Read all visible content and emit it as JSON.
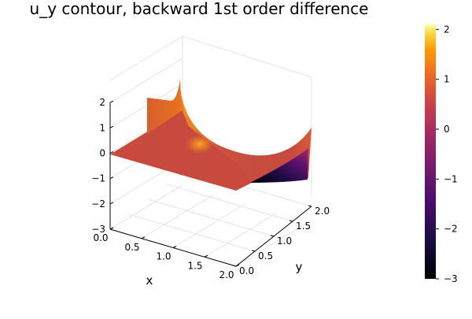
{
  "chart_data": {
    "type": "surface",
    "title": "u_y contour, backward 1st order difference",
    "xlabel": "x",
    "ylabel": "y",
    "xlim": [
      0,
      2
    ],
    "ylim": [
      0,
      2
    ],
    "zlim": [
      -3,
      2.1
    ],
    "x_ticks": [
      "0.0",
      "0.5",
      "1.0",
      "1.5",
      "2.0"
    ],
    "y_ticks": [
      "0.0",
      "0.5",
      "1.0",
      "1.5",
      "2.0"
    ],
    "z_ticks": [
      "−3",
      "−2",
      "−1",
      "0",
      "1",
      "2"
    ],
    "colorbar": {
      "colormap": "inferno",
      "range": [
        -3,
        2.1
      ],
      "ticks": [
        "−3",
        "−2",
        "−1",
        "0",
        "1",
        "2"
      ]
    },
    "grid": true,
    "legend": "none",
    "surface": [
      {
        "x": 0.0,
        "y": 0.0,
        "z": 0.0
      },
      {
        "x": 2.0,
        "y": 0.0,
        "z": 0.0
      },
      {
        "x": 0.0,
        "y": 0.5,
        "z": 0.0
      },
      {
        "x": 1.0,
        "y": 0.5,
        "z": 0.2
      },
      {
        "x": 1.0,
        "y": 1.0,
        "z": 2.1
      },
      {
        "x": 1.0,
        "y": 2.0,
        "z": 0.4
      },
      {
        "x": 2.0,
        "y": 0.5,
        "z": -3.0
      },
      {
        "x": 2.0,
        "y": 1.0,
        "z": -1.8
      },
      {
        "x": 2.0,
        "y": 2.0,
        "z": 0.0
      }
    ]
  }
}
